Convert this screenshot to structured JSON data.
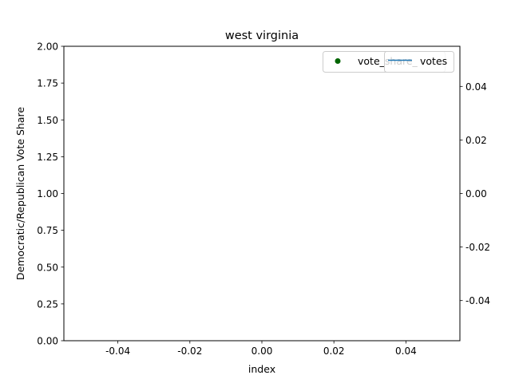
{
  "chart_data": {
    "type": "scatter",
    "title": "west virginia",
    "xlabel": "index",
    "ylabel": "Democratic/Republican Vote Share",
    "xlim": [
      -0.055,
      0.055
    ],
    "ylim": [
      0,
      2
    ],
    "y2lim": [
      -0.055,
      0.055
    ],
    "xticks": [
      "-0.04",
      "-0.02",
      "0.00",
      "0.02",
      "0.04"
    ],
    "xtick_values": [
      -0.04,
      -0.02,
      0,
      0.02,
      0.04
    ],
    "yticks": [
      "0.00",
      "0.25",
      "0.50",
      "0.75",
      "1.00",
      "1.25",
      "1.50",
      "1.75",
      "2.00"
    ],
    "ytick_values": [
      0,
      0.25,
      0.5,
      0.75,
      1.0,
      1.25,
      1.5,
      1.75,
      2.0
    ],
    "y2ticks": [
      "-0.04",
      "-0.02",
      "0.00",
      "0.02",
      "0.04"
    ],
    "y2tick_values": [
      -0.04,
      -0.02,
      0,
      0.02,
      0.04
    ],
    "grid": false,
    "series": [
      {
        "name": "vote_share_",
        "kind": "scatter",
        "color": "#006400",
        "x": [],
        "y": []
      },
      {
        "name": "votes",
        "kind": "line",
        "axis": "right",
        "color": "#1f77b4",
        "x": [],
        "y": []
      }
    ],
    "legends": [
      {
        "placement": "top-right",
        "entries": [
          "vote_share_"
        ]
      },
      {
        "placement": "top-right",
        "entries": [
          "votes"
        ]
      }
    ]
  }
}
